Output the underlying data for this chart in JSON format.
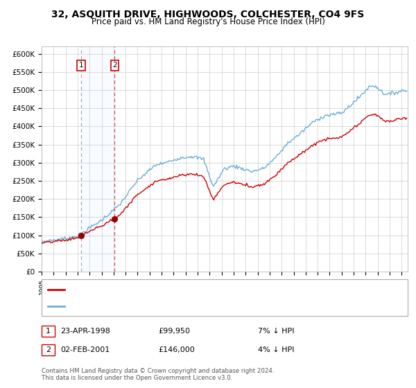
{
  "title": "32, ASQUITH DRIVE, HIGHWOODS, COLCHESTER, CO4 9FS",
  "subtitle": "Price paid vs. HM Land Registry's House Price Index (HPI)",
  "title_fontsize": 10,
  "subtitle_fontsize": 8.5,
  "xlim_start": 1995.0,
  "xlim_end": 2025.5,
  "ylim_bottom": 0,
  "ylim_top": 620000,
  "yticks": [
    0,
    50000,
    100000,
    150000,
    200000,
    250000,
    300000,
    350000,
    400000,
    450000,
    500000,
    550000,
    600000
  ],
  "ytick_labels": [
    "£0",
    "£50K",
    "£100K",
    "£150K",
    "£200K",
    "£250K",
    "£300K",
    "£350K",
    "£400K",
    "£450K",
    "£500K",
    "£550K",
    "£600K"
  ],
  "sale1_date": 1998.31,
  "sale1_price": 99950,
  "sale1_label": "1",
  "sale1_date_str": "23-APR-1998",
  "sale1_price_str": "£99,950",
  "sale1_hpi": "7% ↓ HPI",
  "sale2_date": 2001.09,
  "sale2_price": 146000,
  "sale2_label": "2",
  "sale2_date_str": "02-FEB-2001",
  "sale2_price_str": "£146,000",
  "sale2_hpi": "4% ↓ HPI",
  "hpi_line_color": "#6baed6",
  "price_line_color": "#cc0000",
  "sale_marker_color": "#990000",
  "shade_color": "#ddeeff",
  "grid_color": "#cccccc",
  "legend_box_color": "#cc0000",
  "bg_color": "#ffffff",
  "footer": "Contains HM Land Registry data © Crown copyright and database right 2024.\nThis data is licensed under the Open Government Licence v3.0."
}
